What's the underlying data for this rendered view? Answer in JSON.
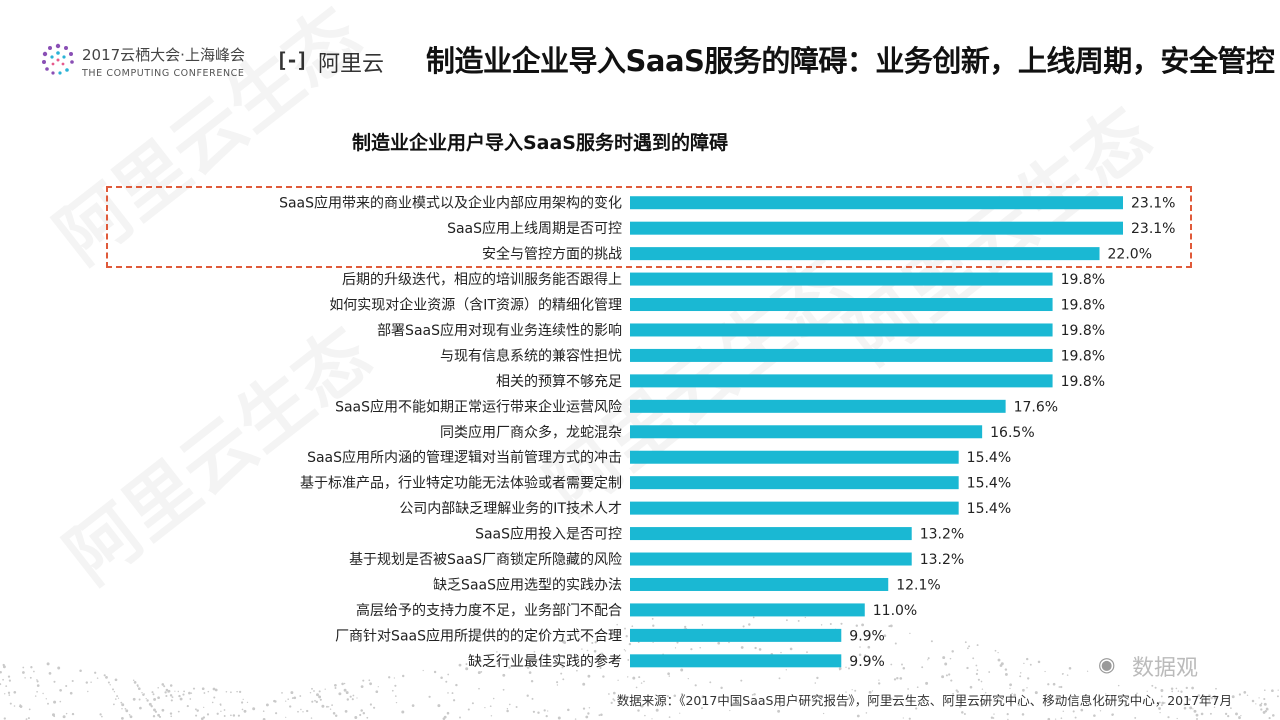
{
  "header": {
    "conference_line1": "2017云栖大会·上海峰会",
    "conference_line2": "THE COMPUTING CONFERENCE",
    "aliyun_icon": "[-]",
    "aliyun_text": "阿里云",
    "page_title": "制造业企业导入SaaS服务的障碍：业务创新，上线周期，安全管控"
  },
  "watermark": {
    "text": "阿里云生态",
    "color": "#000000"
  },
  "footer": {
    "wechat_icon": "wechat-icon",
    "wechat_text": "数据观",
    "source": "数据来源：《2017中国SaaS用户研究报告》，阿里云生态、阿里云研究中心、移动信息化研究中心，2017年7月"
  },
  "colors": {
    "bar": "#1ab8d3",
    "highlight_border": "#e05a3a"
  },
  "chart_data": {
    "type": "bar",
    "orientation": "horizontal",
    "title": "制造业企业用户导入SaaS服务时遇到的障碍",
    "xlim": [
      0,
      25
    ],
    "unit": "%",
    "highlighted_categories": 3,
    "categories": [
      "SaaS应用带来的商业模式以及企业内部应用架构的变化",
      "SaaS应用上线周期是否可控",
      "安全与管控方面的挑战",
      "后期的升级迭代，相应的培训服务能否跟得上",
      "如何实现对企业资源（含IT资源）的精细化管理",
      "部署SaaS应用对现有业务连续性的影响",
      "与现有信息系统的兼容性担忧",
      "相关的预算不够充足",
      "SaaS应用不能如期正常运行带来企业运营风险",
      "同类应用厂商众多，龙蛇混杂",
      "SaaS应用所内涵的管理逻辑对当前管理方式的冲击",
      "基于标准产品，行业特定功能无法体验或者需要定制",
      "公司内部缺乏理解业务的IT技术人才",
      "SaaS应用投入是否可控",
      "基于规划是否被SaaS厂商锁定所隐藏的风险",
      "缺乏SaaS应用选型的实践办法",
      "高层给予的支持力度不足，业务部门不配合",
      "厂商针对SaaS应用所提供的的定价方式不合理",
      "缺乏行业最佳实践的参考"
    ],
    "values": [
      23.1,
      23.1,
      22.0,
      19.8,
      19.8,
      19.8,
      19.8,
      19.8,
      17.6,
      16.5,
      15.4,
      15.4,
      15.4,
      13.2,
      13.2,
      12.1,
      11.0,
      9.9,
      9.9
    ],
    "value_labels": [
      "23.1%",
      "23.1%",
      "22.0%",
      "19.8%",
      "19.8%",
      "19.8%",
      "19.8%",
      "19.8%",
      "17.6%",
      "16.5%",
      "15.4%",
      "15.4%",
      "15.4%",
      "13.2%",
      "13.2%",
      "12.1%",
      "11.0%",
      "9.9%",
      "9.9%"
    ]
  }
}
